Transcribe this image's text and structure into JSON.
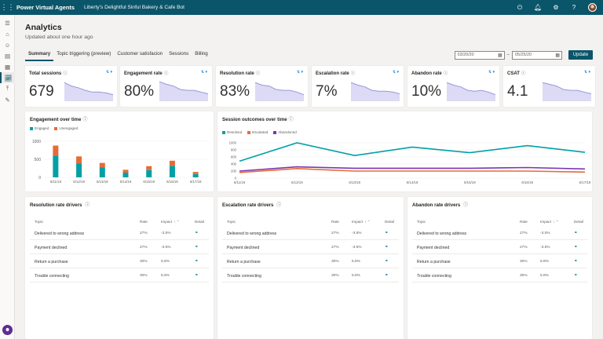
{
  "topbar": {
    "app_title": "Power Virtual Agents",
    "bot_name": "Liberty's Delightful Sinful Bakery & Cafe Bot"
  },
  "page": {
    "title": "Analytics",
    "subtitle": "Updated about one hour ago"
  },
  "tabs": [
    "Summary",
    "Topic triggering (preview)",
    "Customer satisfacion",
    "Sessions",
    "Billing"
  ],
  "date_range": {
    "start": "03/20/20",
    "end": "05/25/20",
    "update_label": "Update"
  },
  "kpis": [
    {
      "label": "Total sessions",
      "value": "679",
      "trend": [
        0.9,
        0.7,
        0.6,
        0.45,
        0.35,
        0.35,
        0.3,
        0.2
      ]
    },
    {
      "label": "Engagement rate",
      "value": "80%",
      "trend": [
        0.95,
        0.8,
        0.7,
        0.5,
        0.45,
        0.45,
        0.35,
        0.25
      ]
    },
    {
      "label": "Resolution rate",
      "value": "83%",
      "trend": [
        0.9,
        0.75,
        0.7,
        0.5,
        0.45,
        0.45,
        0.35,
        0.2
      ]
    },
    {
      "label": "Escalation rate",
      "value": "7%",
      "trend": [
        0.9,
        0.75,
        0.65,
        0.45,
        0.4,
        0.4,
        0.35,
        0.25
      ]
    },
    {
      "label": "Abandon rate",
      "value": "10%",
      "trend": [
        0.9,
        0.75,
        0.65,
        0.45,
        0.4,
        0.45,
        0.35,
        0.2
      ]
    },
    {
      "label": "CSAT",
      "value": "4.1",
      "trend": [
        0.9,
        0.8,
        0.7,
        0.5,
        0.45,
        0.45,
        0.35,
        0.25
      ]
    }
  ],
  "engagement_chart": {
    "title": "Engagement over time",
    "legend": [
      {
        "label": "Engaged",
        "color": "#00a0a6"
      },
      {
        "label": "Unengaged",
        "color": "#e66c37"
      }
    ]
  },
  "outcomes_chart": {
    "title": "Session outcomes over time",
    "legend": [
      {
        "label": "Resolved",
        "color": "#00a0a6"
      },
      {
        "label": "Escalated",
        "color": "#e66c37"
      },
      {
        "label": "Abandoned",
        "color": "#7a36b1"
      }
    ]
  },
  "chart_data": [
    {
      "type": "bar",
      "title": "Engagement over time",
      "categories": [
        "6/11/19",
        "6/12/19",
        "6/13/19",
        "6/14/19",
        "6/15/19",
        "6/16/19",
        "6/17/19"
      ],
      "series": [
        {
          "name": "Engaged",
          "values": [
            600,
            380,
            280,
            130,
            200,
            320,
            90
          ]
        },
        {
          "name": "Unengaged",
          "values": [
            280,
            200,
            120,
            80,
            110,
            140,
            60
          ]
        }
      ],
      "yticks": [
        0,
        500,
        1000
      ],
      "ylim": [
        0,
        1000
      ]
    },
    {
      "type": "line",
      "title": "Session outcomes over time",
      "categories": [
        "6/11/19",
        "6/12/19",
        "6/13/19",
        "6/14/19",
        "6/15/19",
        "6/16/19",
        "6/17/19"
      ],
      "series": [
        {
          "name": "Resolved",
          "values": [
            480,
            1000,
            640,
            880,
            720,
            920,
            730
          ]
        },
        {
          "name": "Escalated",
          "values": [
            160,
            270,
            200,
            200,
            200,
            200,
            170
          ]
        },
        {
          "name": "Abandoned",
          "values": [
            200,
            320,
            280,
            280,
            280,
            300,
            260
          ]
        }
      ],
      "yticks": [
        0,
        200,
        400,
        600,
        800,
        1000
      ],
      "ylim": [
        0,
        1000
      ]
    }
  ],
  "driver_tables": [
    {
      "title": "Resolution rate drivers",
      "headers": {
        "topic": "Topic",
        "rate": "Rate",
        "impact": "Impact",
        "detail": "Detail"
      },
      "rows": [
        {
          "topic": "Delivered to wrong address",
          "rate": "27%",
          "impact": "-3.5%"
        },
        {
          "topic": "Payment declined",
          "rate": "27%",
          "impact": "-3.5%"
        },
        {
          "topic": "Return a purchase",
          "rate": "30%",
          "impact": "5.8%"
        },
        {
          "topic": "Trouble connecting",
          "rate": "30%",
          "impact": "5.8%"
        }
      ]
    },
    {
      "title": "Escalation rate drivers",
      "headers": {
        "topic": "Topic",
        "rate": "Rate",
        "impact": "Impact",
        "detail": "Detail"
      },
      "rows": [
        {
          "topic": "Delivered to wrong address",
          "rate": "27%",
          "impact": "-3.5%"
        },
        {
          "topic": "Payment declined",
          "rate": "27%",
          "impact": "-3.5%"
        },
        {
          "topic": "Return a purchase",
          "rate": "30%",
          "impact": "5.8%"
        },
        {
          "topic": "Trouble connecting",
          "rate": "30%",
          "impact": "5.8%"
        }
      ]
    },
    {
      "title": "Abandon rate drivers",
      "headers": {
        "topic": "Topic",
        "rate": "Rate",
        "impact": "Impact",
        "detail": "Detail"
      },
      "rows": [
        {
          "topic": "Delivered to wrong address",
          "rate": "27%",
          "impact": "-3.5%"
        },
        {
          "topic": "Payment declined",
          "rate": "27%",
          "impact": "-3.5%"
        },
        {
          "topic": "Return a purchase",
          "rate": "30%",
          "impact": "5.8%"
        },
        {
          "topic": "Trouble connecting",
          "rate": "30%",
          "impact": "5.8%"
        }
      ]
    }
  ],
  "colors": {
    "brand": "#0b556a",
    "engaged": "#00a0a6",
    "unengaged": "#e66c37",
    "abandoned": "#7a36b1",
    "sparkline": "#9b96d9"
  }
}
